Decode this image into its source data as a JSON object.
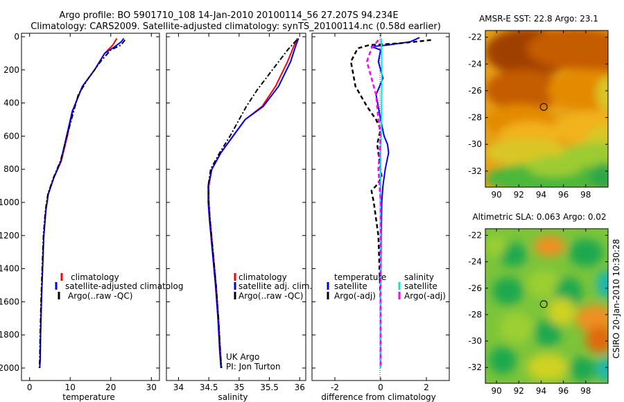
{
  "figure": {
    "title_line1": "Argo profile: BO 5901710_108 14-Jan-2010 20100114_56 27.207S 94.234E",
    "title_line2": "Climatology: CARS2009. Satellite-adjusted climatology: synTS_20100114.nc (0.58d earlier)",
    "side_label": "CSIRO 20-Jan-2010 10:30:28",
    "credit_line1": "UK Argo",
    "credit_line2": "PI: Jon Turton"
  },
  "colors": {
    "climatology": "#ff0000",
    "satellite": "#0000ff",
    "argo": "#000000",
    "salinity_satellite": "#00e5e5",
    "salinity_argo": "#ff00ff"
  },
  "chart_data": [
    {
      "id": "temperature",
      "type": "line",
      "xlabel": "temperature",
      "ylabel": "",
      "xlim": [
        -2,
        32
      ],
      "ylim": [
        2050,
        0
      ],
      "xticks": [
        0,
        10,
        20,
        30
      ],
      "yticks": [
        0,
        200,
        400,
        600,
        800,
        1000,
        1200,
        1400,
        1600,
        1800,
        2000
      ],
      "legend": [
        "climatology",
        "satellite-adjusted climatolog",
        "Argo(..raw -QC)"
      ],
      "series": [
        {
          "name": "climatology",
          "color": "#ff0000",
          "style": "solid",
          "x": [
            21.5,
            20.5,
            18.5,
            16,
            13,
            10.6,
            9.3,
            7.8,
            6,
            4.6,
            4.0,
            3.5,
            3.2,
            2.9,
            2.7,
            2.6,
            2.5
          ],
          "y": [
            10,
            50,
            100,
            200,
            300,
            450,
            600,
            750,
            850,
            950,
            1050,
            1200,
            1400,
            1600,
            1800,
            1950,
            2000
          ]
        },
        {
          "name": "satellite-adjusted climatolog",
          "color": "#0000ff",
          "style": "solid",
          "x": [
            23.2,
            22.6,
            21,
            18.5,
            16,
            13,
            10.5,
            9.1,
            7.7,
            6,
            4.6,
            4.0,
            3.5,
            3.2,
            2.9,
            2.7,
            2.6,
            2.5
          ],
          "y": [
            10,
            30,
            60,
            100,
            200,
            300,
            450,
            600,
            750,
            850,
            950,
            1050,
            1200,
            1400,
            1600,
            1800,
            1950,
            2000
          ]
        },
        {
          "name": "Argo(..raw -QC)",
          "color": "#000000",
          "style": "dashdot",
          "x": [
            23.5,
            22.5,
            20,
            17.5,
            14.5,
            12,
            10.3,
            9,
            7.6,
            5.9,
            4.5,
            3.9,
            3.4,
            3.1,
            2.8,
            2.6,
            2.5,
            2.4
          ],
          "y": [
            20,
            50,
            80,
            150,
            250,
            350,
            500,
            620,
            750,
            850,
            950,
            1050,
            1200,
            1400,
            1600,
            1800,
            1950,
            2000
          ]
        }
      ]
    },
    {
      "id": "salinity",
      "type": "line",
      "xlabel": "salinity",
      "ylabel": "",
      "xlim": [
        33.8,
        36.1
      ],
      "ylim": [
        2050,
        0
      ],
      "xticks": [
        34,
        34.5,
        35,
        35.5,
        36
      ],
      "yticks": [],
      "legend": [
        "climatology",
        "satellite adj. clim.",
        "Argo(..raw -QC)"
      ],
      "series": [
        {
          "name": "climatology",
          "color": "#ff0000",
          "style": "solid",
          "x": [
            35.96,
            35.9,
            35.8,
            35.6,
            35.38,
            35.1,
            34.9,
            34.7,
            34.55,
            34.5,
            34.5,
            34.52,
            34.57,
            34.62,
            34.66,
            34.69,
            34.71
          ],
          "y": [
            10,
            60,
            150,
            300,
            420,
            500,
            600,
            700,
            800,
            900,
            1000,
            1100,
            1300,
            1500,
            1700,
            1900,
            2000
          ]
        },
        {
          "name": "satellite adj. clim.",
          "color": "#0000ff",
          "style": "solid",
          "x": [
            35.98,
            35.93,
            35.85,
            35.65,
            35.4,
            35.1,
            34.9,
            34.7,
            34.55,
            34.49,
            34.49,
            34.51,
            34.56,
            34.61,
            34.65,
            34.68,
            34.7
          ],
          "y": [
            10,
            60,
            150,
            300,
            420,
            500,
            600,
            700,
            800,
            900,
            1000,
            1100,
            1300,
            1500,
            1700,
            1900,
            2000
          ]
        },
        {
          "name": "Argo(..raw -QC)",
          "color": "#000000",
          "style": "dashdot",
          "x": [
            35.95,
            35.8,
            35.55,
            35.3,
            35.12,
            35.0,
            34.85,
            34.68,
            34.53,
            34.49,
            34.5,
            34.52,
            34.57,
            34.62,
            34.66,
            34.69,
            34.71
          ],
          "y": [
            20,
            80,
            200,
            320,
            420,
            500,
            600,
            700,
            800,
            900,
            1000,
            1100,
            1300,
            1500,
            1700,
            1900,
            2000
          ]
        }
      ]
    },
    {
      "id": "difference",
      "type": "line",
      "xlabel": "difference from climatology",
      "ylabel": "",
      "xlim": [
        -3,
        3
      ],
      "ylim": [
        2050,
        0
      ],
      "xticks": [
        -2,
        0,
        2
      ],
      "yticks": [],
      "legend_temperature_title": "temperature",
      "legend_salinity_title": "salinity",
      "legend": [
        "satellite",
        "Argo(-adj)",
        "satellite",
        "Argo(-adj)"
      ],
      "series": [
        {
          "name": "temperature satellite",
          "color": "#0000ff",
          "style": "solid",
          "width": 2,
          "x": [
            1.7,
            1.3,
            0.3,
            -0.4,
            0.0,
            -0.1,
            0.1,
            -0.2,
            0.0,
            0.15,
            0.3,
            0.35,
            0.2,
            0.1,
            0.05,
            0.02,
            0.0,
            0.0
          ],
          "y": [
            5,
            30,
            50,
            60,
            80,
            150,
            250,
            350,
            500,
            600,
            650,
            700,
            800,
            900,
            1000,
            1200,
            1600,
            2000
          ]
        },
        {
          "name": "temperature Argo(-adj)",
          "color": "#000000",
          "style": "dashed",
          "width": 2.5,
          "x": [
            2.2,
            0.8,
            -0.5,
            -1.0,
            -1.3,
            -1.1,
            -0.6,
            -0.2,
            0.0,
            -0.15,
            -0.05,
            0.05,
            -0.2,
            -0.4,
            -0.3,
            -0.1,
            0.0,
            0.0
          ],
          "y": [
            20,
            40,
            50,
            70,
            150,
            300,
            420,
            500,
            560,
            650,
            750,
            850,
            900,
            930,
            1000,
            1200,
            1600,
            2000
          ]
        },
        {
          "name": "salinity satellite",
          "color": "#00e5e5",
          "style": "solid",
          "width": 2,
          "x": [
            0.02,
            0.03,
            0.05,
            0.05,
            0.04,
            0.03,
            0.02,
            0.0,
            0.0,
            0.0,
            0.0,
            0.0,
            0.0
          ],
          "y": [
            10,
            60,
            150,
            300,
            420,
            500,
            600,
            700,
            900,
            1200,
            1500,
            1800,
            2000
          ]
        },
        {
          "name": "salinity Argo(-adj)",
          "color": "#ff00ff",
          "style": "dashed",
          "width": 2.5,
          "x": [
            -0.1,
            -0.4,
            -0.6,
            -0.4,
            -0.2,
            -0.1,
            0.0,
            -0.05,
            -0.1,
            -0.05,
            0.0,
            0.0,
            0.0,
            0.0
          ],
          "y": [
            20,
            70,
            150,
            250,
            350,
            500,
            600,
            700,
            800,
            900,
            1000,
            1200,
            1600,
            2000
          ]
        }
      ]
    },
    {
      "id": "sst_map",
      "type": "heatmap",
      "title": "AMSR-E SST: 22.8 Argo: 23.1",
      "xlim": [
        89,
        100
      ],
      "ylim": [
        -33.2,
        -21.5
      ],
      "xticks": [
        90,
        92,
        94,
        96,
        98
      ],
      "yticks": [
        -22,
        -24,
        -26,
        -28,
        -30,
        -32
      ],
      "marker": {
        "lon": 94.234,
        "lat": -27.207
      },
      "palette": [
        "#a04000",
        "#c45c00",
        "#e38a05",
        "#f2b21a",
        "#d9c628",
        "#9ccc30",
        "#4cb83a",
        "#2ea84a"
      ]
    },
    {
      "id": "sla_map",
      "type": "heatmap",
      "title": "Altimetric SLA: 0.063 Argo: 0.02",
      "xlim": [
        89,
        100
      ],
      "ylim": [
        -33.2,
        -21.5
      ],
      "xticks": [
        90,
        92,
        94,
        96,
        98
      ],
      "yticks": [
        -22,
        -24,
        -26,
        -28,
        -30,
        -32
      ],
      "marker": {
        "lon": 94.234,
        "lat": -27.207
      },
      "palette": [
        "#1bb6b0",
        "#1fa84f",
        "#55bf3a",
        "#9ccf30",
        "#cfd224",
        "#f0b820",
        "#ee9020",
        "#e06a10"
      ]
    }
  ]
}
